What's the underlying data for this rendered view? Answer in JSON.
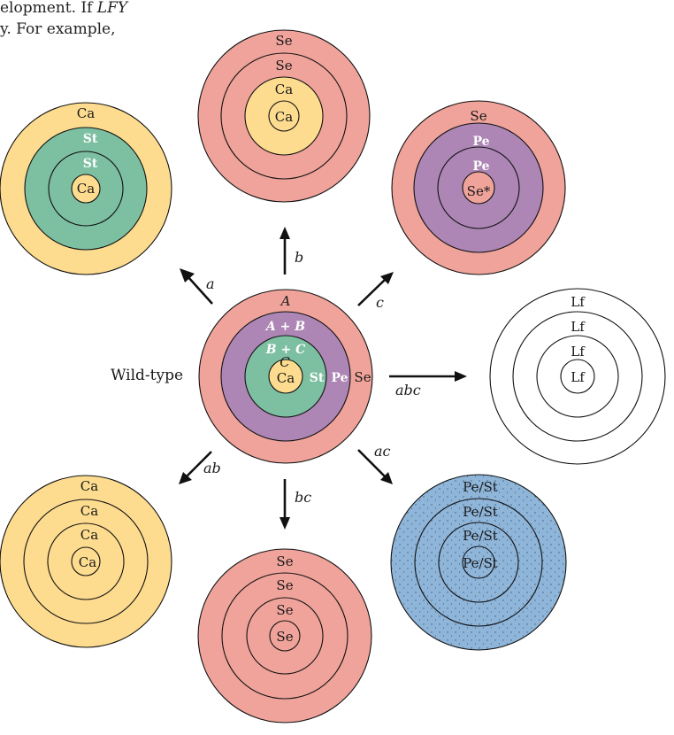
{
  "intro": {
    "line1_text": "elopment. If ",
    "line1_italic": "LFY",
    "line2_text": "y. For example,"
  },
  "colors": {
    "sepal": "#efa39a",
    "petal": "#ad86b5",
    "stamen": "#7dbfa1",
    "carpel": "#fddc8f",
    "leaf": "#ffffff",
    "petal_stamen": "#8fb5d9"
  },
  "wild_type": {
    "label": "Wild-type",
    "class_a": "A",
    "class_ab": "A + B",
    "class_bc": "B + C",
    "class_c": "C",
    "whorl1": "Se",
    "whorl2": "Pe",
    "whorl3": "St",
    "whorl4": "Ca"
  },
  "mutants": {
    "a": {
      "arrow_label": "a",
      "whorls": [
        "Ca",
        "St",
        "St",
        "Ca"
      ]
    },
    "b": {
      "arrow_label": "b",
      "whorls": [
        "Se",
        "Se",
        "Ca",
        "Ca"
      ]
    },
    "c": {
      "arrow_label": "c",
      "whorls": [
        "Se",
        "Pe",
        "Pe",
        "Se*"
      ]
    },
    "abc": {
      "arrow_label": "abc",
      "whorls": [
        "Lf",
        "Lf",
        "Lf",
        "Lf"
      ]
    },
    "ab": {
      "arrow_label": "ab",
      "whorls": [
        "Ca",
        "Ca",
        "Ca",
        "Ca"
      ]
    },
    "bc": {
      "arrow_label": "bc",
      "whorls": [
        "Se",
        "Se",
        "Se",
        "Se"
      ]
    },
    "ac": {
      "arrow_label": "ac",
      "whorls": [
        "Pe/St",
        "Pe/St",
        "Pe/St",
        "Pe/St"
      ]
    }
  }
}
